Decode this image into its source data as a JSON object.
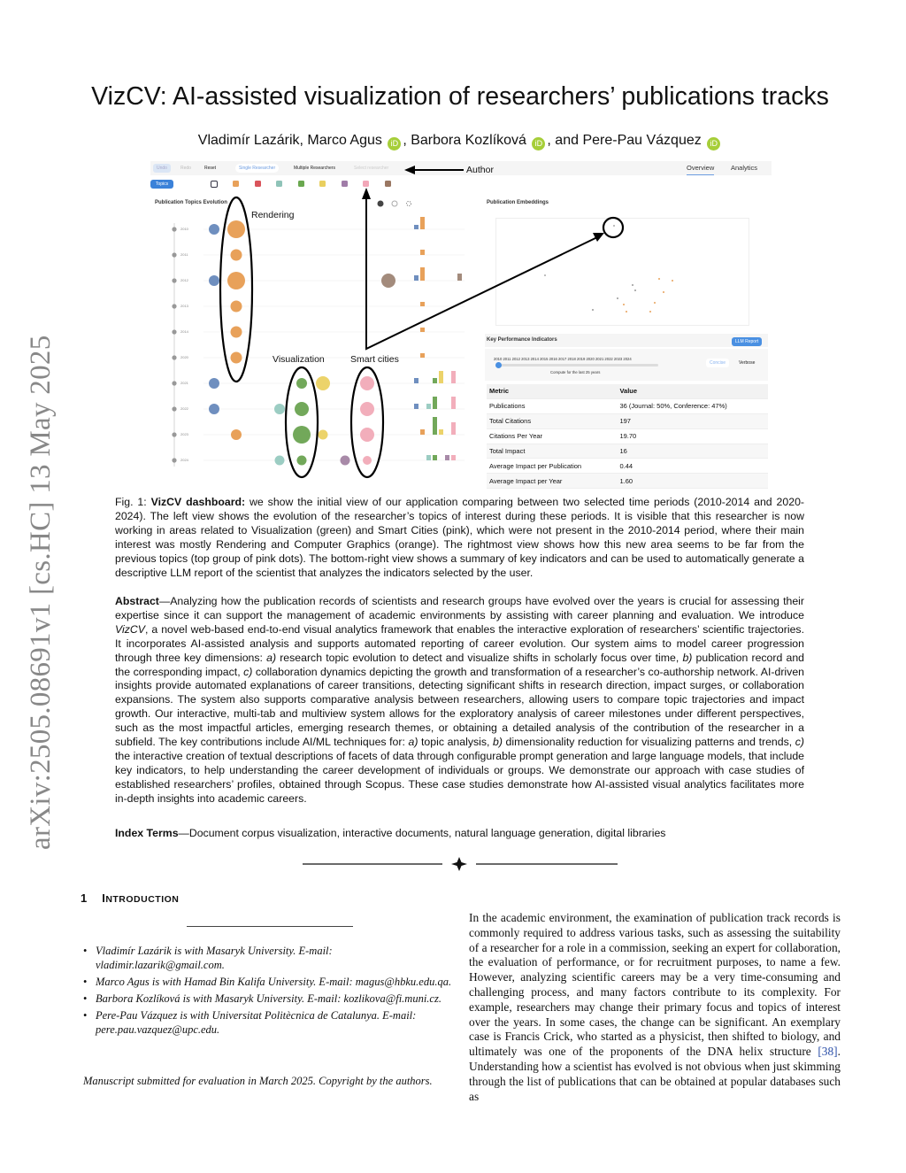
{
  "title": "VizCV: AI-assisted visualization of researchers’ publications tracks",
  "authors": {
    "a1": "Vladimír Lazárik, Marco Agus",
    "a2": ", Barbora Kozlíková",
    "a3": ", and Pere-Pau Vázquez",
    "orcid_label": "iD"
  },
  "arxiv_stamp": "arXiv:2505.08691v1  [cs.HC]  13 May 2025",
  "figure": {
    "toolbar": {
      "undo": "Undo",
      "redo": "Redo",
      "reset": "Reset",
      "single": "Single Researcher",
      "multiple": "Multiple Researchers",
      "author_select": "Select researcher",
      "overview": "Overview",
      "analytics": "Analytics",
      "topics": "Topics"
    },
    "topic_colors": [
      "#e8a15a",
      "#d9545b",
      "#8fc3b8",
      "#6aa84f",
      "#e9cf5f",
      "#a07ca8",
      "#f2a7b8",
      "#9a7762"
    ],
    "series_colors": {
      "blue": "#6f8fbf",
      "orange": "#e8a15a",
      "teal": "#9ccdc3",
      "green": "#72a85a",
      "yellow": "#ecd36a",
      "purple": "#a88aa8",
      "pink": "#f2aebb",
      "brown": "#a38b7c"
    },
    "topics_panel_title": "Publication Topics Evolution",
    "years": [
      "2010",
      "2011",
      "2012",
      "2013",
      "2014",
      "2020",
      "2021",
      "2022",
      "2023",
      "2024"
    ],
    "embeddings_title": "Publication Embeddings",
    "kpi": {
      "title": "Key Performance Indicators",
      "llm_button": "LLM Report",
      "slider_years": "2010 2011 2012 2013 2014 2015 2016 2017 2018 2019 2020 2021 2022 2023 2024",
      "slider_note": "Compute for the last 25 years",
      "concise": "Concise",
      "verbose": "Verbose",
      "headers": [
        "Metric",
        "Value"
      ],
      "rows": [
        [
          "Publications",
          "36 (Journal: 50%, Conference: 47%)"
        ],
        [
          "Total Citations",
          "197"
        ],
        [
          "Citations Per Year",
          "19.70"
        ],
        [
          "Total Impact",
          "16"
        ],
        [
          "Average Impact per Publication",
          "0.44"
        ],
        [
          "Average Impact per Year",
          "1.60"
        ]
      ]
    },
    "annotations": {
      "author": "Author",
      "rendering": "Rendering",
      "visualization": "Visualization",
      "smart_cities": "Smart cities"
    }
  },
  "caption": {
    "label": "Fig. 1:",
    "bold": "VizCV dashboard:",
    "text": " we show the initial view of our application comparing between two selected time periods (2010-2014 and 2020-2024). The left view shows the evolution of the researcher’s topics of interest during these periods. It is visible that this researcher is now working in areas related to Visualization (green) and Smart Cities (pink), which were not present in the 2010-2014 period, where their main interest was mostly Rendering and Computer Graphics (orange). The rightmost view shows how this new area seems to be far from the previous topics (top group of pink dots). The bottom-right view shows a summary of key indicators and can be used to automatically generate a descriptive LLM report of the scientist that analyzes the indicators selected by the user."
  },
  "abstract": {
    "label": "Abstract",
    "p1": "—Analyzing how the publication records of scientists and research groups have evolved over the years is crucial for assessing their expertise since it can support the management of academic environments by assisting with career planning and evaluation. We introduce ",
    "vizcv": "VizCV",
    "p2": ", a novel web-based end-to-end visual analytics framework that enables the interactive exploration of researchers’ scientific trajectories. It incorporates AI-assisted analysis and supports automated reporting of career evolution. Our system aims to model career progression through three key dimensions: ",
    "a": "a)",
    "p3": " research topic evolution to detect and visualize shifts in scholarly focus over time, ",
    "b": "b)",
    "p4": " publication record and the corresponding impact, ",
    "c": "c)",
    "p5": " collaboration dynamics depicting the growth and transformation of a researcher’s co-authorship network. AI-driven insights provide automated explanations of career transitions, detecting significant shifts in research direction, impact surges, or collaboration expansions. The system also supports comparative analysis between researchers, allowing users to compare topic trajectories and impact growth. Our interactive, multi-tab and multiview system allows for the exploratory analysis of career milestones under different perspectives, such as the most impactful articles, emerging research themes, or obtaining a detailed analysis of the contribution of the researcher in a subfield. The key contributions include AI/ML techniques for: ",
    "p6": " topic analysis, ",
    "p7": " dimensionality reduction for visualizing patterns and trends, ",
    "p8": " the interactive creation of textual descriptions of facets of data through configurable prompt generation and large language models, that include key indicators, to help understanding the career development of individuals or groups. We demonstrate our approach with case studies of established researchers’ profiles, obtained through Scopus. These case studies demonstrate how AI-assisted visual analytics facilitates more in-depth insights into academic careers."
  },
  "index_terms": {
    "label": "Index Terms",
    "text": "—Document corpus visualization, interactive documents, natural language generation, digital libraries"
  },
  "section": {
    "number": "1",
    "first": "I",
    "rest": "NTRODUCTION"
  },
  "footnotes": [
    "Vladimír Lazárik is with Masaryk University. E-mail: vladimir.lazarik@gmail.com.",
    "Marco Agus is with Hamad Bin Kalifa University. E-mail: magus@hbku.edu.qa.",
    "Barbora Kozlíková is with Masaryk University. E-mail: kozlikova@fi.muni.cz.",
    "Pere-Pau Vázquez is with Universitat Politècnica de Catalunya. E-mail: pere.pau.vazquez@upc.edu."
  ],
  "manuscript_note": "Manuscript submitted for evaluation in March 2025. Copyright by the authors.",
  "intro": {
    "p1": "In the academic environment, the examination of publication track records is commonly required to address various tasks, such as assessing the suitability of a researcher for a role in a commission, seeking an expert for collaboration, the evaluation of performance, or for recruitment purposes, to name a few. However, analyzing scientific careers may be a very time-consuming and challenging process, and many factors contribute to its complexity. For example, researchers may change their primary focus and topics of interest over the years. In some cases, the change can be significant. An exemplary case is Francis Crick, who started as a physicist, then shifted to biology, and ultimately was one of the proponents of the DNA helix structure ",
    "cite": "[38]",
    "p2": ". Understanding how a scientist has evolved is not obvious when just skimming through the list of publications that can be obtained at popular databases such as"
  }
}
